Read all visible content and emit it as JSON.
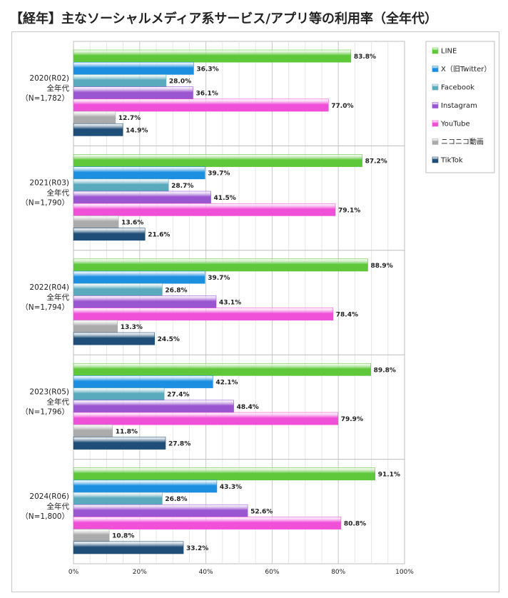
{
  "title": "【経年】主なソーシャルメディア系サービス/アプリ等の利用率（全年代）",
  "chart_data": {
    "type": "bar",
    "orientation": "horizontal",
    "title": "【経年】主なソーシャルメディア系サービス/アプリ等の利用率（全年代）",
    "xlim": [
      0,
      100
    ],
    "x_ticks": [
      "0%",
      "20%",
      "40%",
      "60%",
      "80%",
      "100%"
    ],
    "x_tick_values": [
      0,
      20,
      40,
      60,
      80,
      100
    ],
    "grid": true,
    "legend_position": "top-right",
    "groups": [
      {
        "lines": [
          "2020(R02)",
          "全年代",
          "（N=1,782）"
        ]
      },
      {
        "lines": [
          "2021(R03)",
          "全年代",
          "（N=1,790）"
        ]
      },
      {
        "lines": [
          "2022(R04)",
          "全年代",
          "（N=1,794）"
        ]
      },
      {
        "lines": [
          "2023(R05)",
          "全年代",
          "（N=1,796）"
        ]
      },
      {
        "lines": [
          "2024(R06)",
          "全年代",
          "（N=1,800）"
        ]
      }
    ],
    "series": [
      {
        "name": "LINE",
        "color": "#5ec83a",
        "values": [
          83.8,
          87.2,
          88.9,
          89.8,
          91.1
        ],
        "labels": [
          "83.8%",
          "87.2%",
          "88.9%",
          "89.8%",
          "91.1%"
        ]
      },
      {
        "name": "X（旧Twitter）",
        "color": "#1d8fe0",
        "values": [
          36.3,
          39.7,
          39.7,
          42.1,
          43.3
        ],
        "labels": [
          "36.3%",
          "39.7%",
          "39.7%",
          "42.1%",
          "43.3%"
        ]
      },
      {
        "name": "Facebook",
        "color": "#5aaabd",
        "values": [
          28.0,
          28.7,
          26.8,
          27.4,
          26.8
        ],
        "labels": [
          "28.0%",
          "28.7%",
          "26.8%",
          "27.4%",
          "26.8%"
        ]
      },
      {
        "name": "Instagram",
        "color": "#9a55d0",
        "values": [
          36.1,
          41.5,
          43.1,
          48.4,
          52.6
        ],
        "labels": [
          "36.1%",
          "41.5%",
          "43.1%",
          "48.4%",
          "52.6%"
        ]
      },
      {
        "name": "YouTube",
        "color": "#f04fd8",
        "values": [
          77.0,
          79.1,
          78.4,
          79.9,
          80.8
        ],
        "labels": [
          "77.0%",
          "79.1%",
          "78.4%",
          "79.9%",
          "80.8%"
        ]
      },
      {
        "name": "ニコニコ動画",
        "color": "#ababab",
        "values": [
          12.7,
          13.6,
          13.3,
          11.8,
          10.8
        ],
        "labels": [
          "12.7%",
          "13.6%",
          "13.3%",
          "11.8%",
          "10.8%"
        ]
      },
      {
        "name": "TikTok",
        "color": "#1f4f78",
        "values": [
          14.9,
          21.6,
          24.5,
          27.8,
          33.2
        ],
        "labels": [
          "14.9%",
          "21.6%",
          "24.5%",
          "27.8%",
          "33.2%"
        ]
      }
    ]
  }
}
